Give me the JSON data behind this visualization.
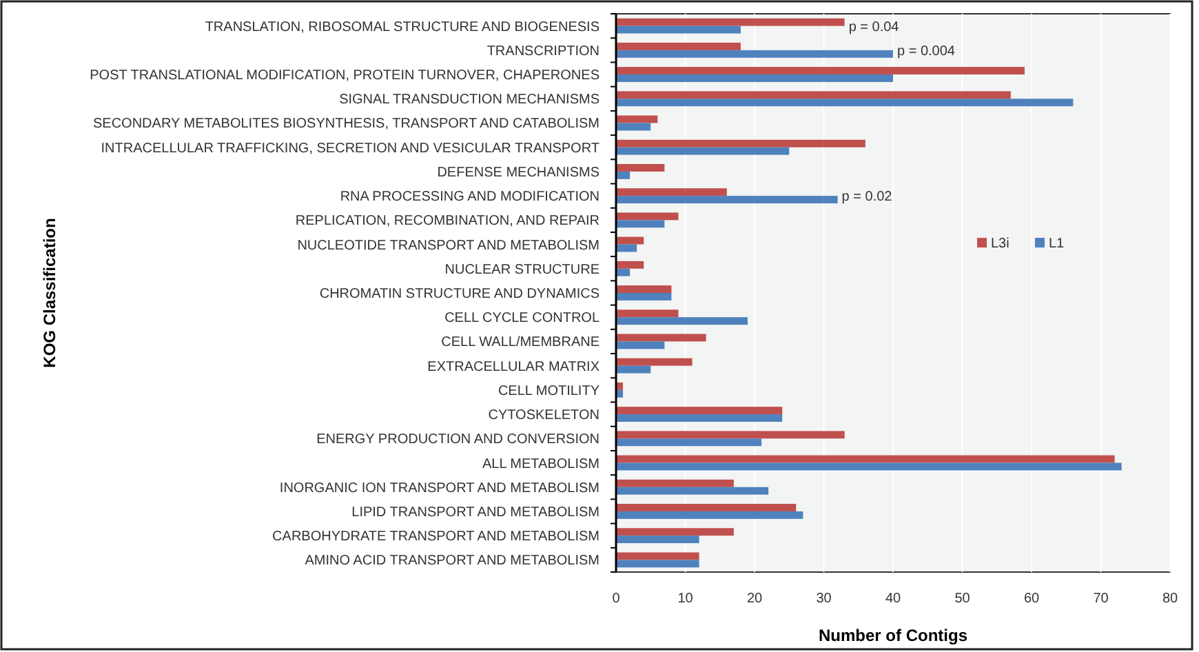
{
  "chart_data": {
    "type": "bar",
    "orientation": "horizontal",
    "xlabel": "Number of Contigs",
    "ylabel": "KOG Classification",
    "categories": [
      "TRANSLATION, RIBOSOMAL STRUCTURE AND BIOGENESIS",
      "TRANSCRIPTION",
      "POST TRANSLATIONAL MODIFICATION, PROTEIN TURNOVER, CHAPERONES",
      "SIGNAL TRANSDUCTION MECHANISMS",
      "SECONDARY METABOLITES BIOSYNTHESIS, TRANSPORT AND CATABOLISM",
      "INTRACELLULAR TRAFFICKING, SECRETION AND VESICULAR TRANSPORT",
      "DEFENSE MECHANISMS",
      "RNA PROCESSING AND MODIFICATION",
      "REPLICATION, RECOMBINATION, AND REPAIR",
      "NUCLEOTIDE TRANSPORT AND METABOLISM",
      "NUCLEAR STRUCTURE",
      "CHROMATIN STRUCTURE AND DYNAMICS",
      "CELL CYCLE CONTROL",
      "CELL WALL/MEMBRANE",
      "EXTRACELLULAR MATRIX",
      "CELL MOTILITY",
      "CYTOSKELETON",
      "ENERGY PRODUCTION AND CONVERSION",
      "ALL METABOLISM",
      "INORGANIC ION TRANSPORT AND METABOLISM",
      "LIPID TRANSPORT AND METABOLISM",
      "CARBOHYDRATE TRANSPORT AND METABOLISM",
      "AMINO ACID TRANSPORT AND METABOLISM"
    ],
    "series": [
      {
        "name": "L3i",
        "color": "#c0504d",
        "values": [
          33,
          18,
          59,
          57,
          6,
          36,
          7,
          16,
          9,
          4,
          4,
          8,
          9,
          13,
          11,
          1,
          24,
          33,
          72,
          17,
          26,
          17,
          12
        ]
      },
      {
        "name": "L1",
        "color": "#4f81bd",
        "values": [
          18,
          40,
          40,
          66,
          5,
          25,
          2,
          32,
          7,
          3,
          2,
          8,
          19,
          7,
          5,
          1,
          24,
          21,
          73,
          22,
          27,
          12,
          12
        ]
      }
    ],
    "xlim": [
      0,
      80
    ],
    "xticks": [
      0,
      10,
      20,
      30,
      40,
      50,
      60,
      70,
      80
    ],
    "grid": "x",
    "legend": "right",
    "annotations": [
      {
        "text": "p = 0.04",
        "x": 33,
        "y": "TRANSLATION, RIBOSOMAL STRUCTURE AND BIOGENESIS"
      },
      {
        "text": "p = 0.004",
        "x": 40,
        "y": "TRANSCRIPTION"
      },
      {
        "text": "p = 0.02",
        "x": 32,
        "y": "RNA PROCESSING AND MODIFICATION"
      }
    ]
  }
}
